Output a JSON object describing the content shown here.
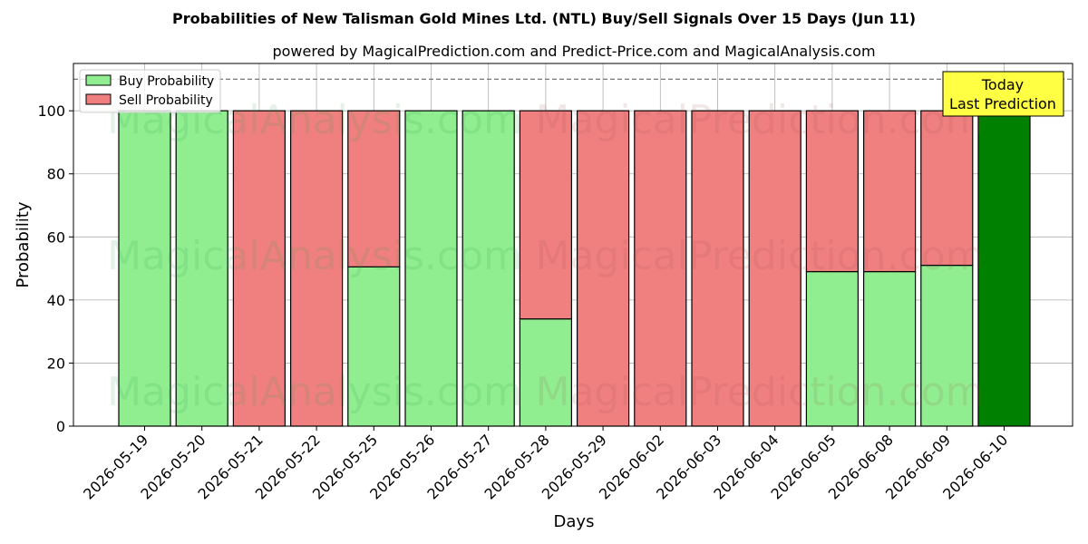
{
  "chart_data": {
    "type": "bar",
    "stacked": true,
    "title": "Probabilities of New Talisman Gold Mines Ltd. (NTL) Buy/Sell Signals Over 15 Days (Jun 11)",
    "subtitle": "powered by MagicalPrediction.com and Predict-Price.com and MagicalAnalysis.com",
    "xlabel": "Days",
    "ylabel": "Probability",
    "ylim": [
      0,
      115
    ],
    "yticks": [
      0,
      20,
      40,
      60,
      80,
      100
    ],
    "reference_line": 110,
    "grid": true,
    "legend_position": "top-left",
    "categories": [
      "2026-05-19",
      "2026-05-20",
      "2026-05-21",
      "2026-05-22",
      "2026-05-25",
      "2026-05-26",
      "2026-05-27",
      "2026-05-28",
      "2026-05-29",
      "2026-06-02",
      "2026-06-03",
      "2026-06-04",
      "2026-06-05",
      "2026-06-08",
      "2026-06-09",
      "2026-06-10"
    ],
    "series": [
      {
        "name": "Buy Probability",
        "color": "#90ee90",
        "values": [
          100,
          100,
          0,
          0,
          50.5,
          100,
          100,
          34,
          0,
          0,
          0,
          0,
          49,
          49,
          51,
          100
        ]
      },
      {
        "name": "Sell Probability",
        "color": "#f08080",
        "values": [
          0,
          0,
          100,
          100,
          49.5,
          0,
          0,
          66,
          100,
          100,
          100,
          100,
          51,
          51,
          49,
          0
        ]
      }
    ],
    "highlight": {
      "index": 15,
      "color": "#008000"
    },
    "annotation": {
      "lines": [
        "Today",
        "Last Prediction"
      ],
      "background": "#ffff44"
    },
    "watermarks": [
      "MagicalAnalysis.com",
      "MagicalPrediction.com"
    ]
  }
}
